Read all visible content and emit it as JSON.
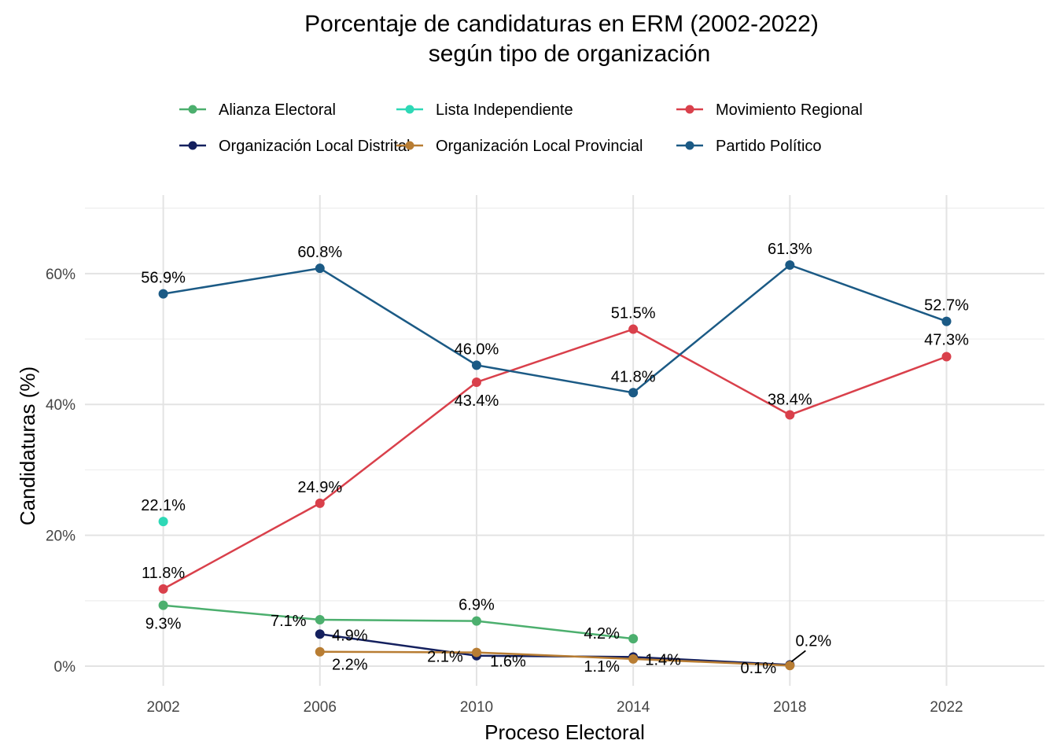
{
  "chart_data": {
    "type": "line",
    "title": "Porcentaje de candidaturas en ERM (2002-2022)",
    "subtitle": "según tipo de organización",
    "xlabel": "Proceso Electoral",
    "ylabel": "Candidaturas (%)",
    "x_ticks": [
      "2002",
      "2006",
      "2010",
      "2014",
      "2018",
      "2022"
    ],
    "y_ticks": [
      "0%",
      "20%",
      "40%",
      "60%"
    ],
    "xlim": [
      2000,
      2024.5
    ],
    "ylim": [
      -3,
      72
    ],
    "grid": true,
    "legend_position": "top",
    "series": [
      {
        "name": "Alianza Electoral",
        "color": "#4caf6e",
        "points": [
          {
            "x": 2002,
            "y": 9.3,
            "label": "9.3%"
          },
          {
            "x": 2006,
            "y": 7.1,
            "label": "7.1%"
          },
          {
            "x": 2010,
            "y": 6.9,
            "label": "6.9%"
          },
          {
            "x": 2014,
            "y": 4.2,
            "label": "4.2%"
          }
        ]
      },
      {
        "name": "Lista Independiente",
        "color": "#2ed8b6",
        "points": [
          {
            "x": 2002,
            "y": 22.1,
            "label": "22.1%"
          }
        ]
      },
      {
        "name": "Movimiento Regional",
        "color": "#d9404b",
        "points": [
          {
            "x": 2002,
            "y": 11.8,
            "label": "11.8%"
          },
          {
            "x": 2006,
            "y": 24.9,
            "label": "24.9%"
          },
          {
            "x": 2010,
            "y": 43.4,
            "label": "43.4%"
          },
          {
            "x": 2014,
            "y": 51.5,
            "label": "51.5%"
          },
          {
            "x": 2018,
            "y": 38.4,
            "label": "38.4%"
          },
          {
            "x": 2022,
            "y": 47.3,
            "label": "47.3%"
          }
        ]
      },
      {
        "name": "Organización Local Distrital",
        "color": "#14205e",
        "points": [
          {
            "x": 2006,
            "y": 4.9,
            "label": "4.9%"
          },
          {
            "x": 2010,
            "y": 1.6,
            "label": "1.6%"
          },
          {
            "x": 2014,
            "y": 1.4,
            "label": "1.4%"
          },
          {
            "x": 2018,
            "y": 0.2,
            "label": "0.2%"
          }
        ]
      },
      {
        "name": "Organización Local Provincial",
        "color": "#b87d33",
        "points": [
          {
            "x": 2006,
            "y": 2.2,
            "label": "2.2%"
          },
          {
            "x": 2010,
            "y": 2.1,
            "label": "2.1%"
          },
          {
            "x": 2014,
            "y": 1.1,
            "label": "1.1%"
          },
          {
            "x": 2018,
            "y": 0.1,
            "label": "0.1%"
          }
        ]
      },
      {
        "name": "Partido Político",
        "color": "#1b5a85",
        "points": [
          {
            "x": 2002,
            "y": 56.9,
            "label": "56.9%"
          },
          {
            "x": 2006,
            "y": 60.8,
            "label": "60.8%"
          },
          {
            "x": 2010,
            "y": 46.0,
            "label": "46.0%"
          },
          {
            "x": 2014,
            "y": 41.8,
            "label": "41.8%"
          },
          {
            "x": 2018,
            "y": 61.3,
            "label": "61.3%"
          },
          {
            "x": 2022,
            "y": 52.7,
            "label": "52.7%"
          }
        ]
      }
    ]
  }
}
